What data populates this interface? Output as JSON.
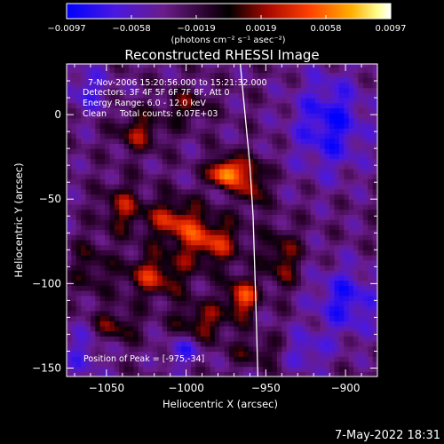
{
  "chart_data": {
    "type": "heatmap",
    "title": "Reconstructed RHESSI Image",
    "xlabel": "Heliocentric X (arcsec)",
    "ylabel": "Heliocentric Y (arcsec)",
    "xlim": [
      -1075,
      -880
    ],
    "ylim": [
      -155,
      30
    ],
    "x_ticks": [
      -1050,
      -1000,
      -950,
      -900
    ],
    "x_tick_labels": [
      "−1050",
      "−1000",
      "−950",
      "−900"
    ],
    "y_ticks": [
      0,
      -50,
      -100,
      -150
    ],
    "y_tick_labels": [
      "0",
      "−50",
      "−100",
      "−150"
    ],
    "colorbar": {
      "min": -0.0097,
      "max": 0.0097,
      "tick_labels": [
        "−0.0097",
        "−0.0058",
        "−0.0019",
        "0.0019",
        "0.0058",
        "0.0097"
      ],
      "unit_label": "(photons cm⁻² s⁻¹ asec⁻²)",
      "colors": [
        "#0000ff",
        "#5020d8",
        "#6a1c8a",
        "#000000",
        "#c01000",
        "#ff4000",
        "#ffa000",
        "#ffff80",
        "#ffffff"
      ]
    },
    "annotations": [
      "7-Nov-2006 15:20:56.000 to 15:21:32.000",
      "Detectors: 3F 4F 5F 6F 7F 8F, Att 0",
      "Energy Range: 6.0 - 12.0 keV",
      "Clean     Total counts: 6.07E+03"
    ],
    "peak_text": "Position of Peak = [-975,-34]",
    "peak_position": [
      -975,
      -34
    ],
    "sources": [
      {
        "x": -975,
        "y": -34,
        "amp": 1.0,
        "sx": 7,
        "sy": 6
      },
      {
        "x": -958,
        "y": -40,
        "amp": 0.55,
        "sx": 6,
        "sy": 10
      },
      {
        "x": -1008,
        "y": -62,
        "amp": 0.55,
        "sx": 12,
        "sy": 9
      },
      {
        "x": -1040,
        "y": -55,
        "amp": 0.45,
        "sx": 9,
        "sy": 10
      },
      {
        "x": -1030,
        "y": -10,
        "amp": 0.45,
        "sx": 10,
        "sy": 8
      },
      {
        "x": -985,
        "y": -75,
        "amp": 0.6,
        "sx": 14,
        "sy": 10
      },
      {
        "x": -965,
        "y": -108,
        "amp": 0.7,
        "sx": 7,
        "sy": 8
      },
      {
        "x": -1020,
        "y": -95,
        "amp": 0.55,
        "sx": 14,
        "sy": 9
      },
      {
        "x": -990,
        "y": -122,
        "amp": 0.45,
        "sx": 12,
        "sy": 8
      },
      {
        "x": -1045,
        "y": -125,
        "amp": 0.4,
        "sx": 10,
        "sy": 7
      },
      {
        "x": -940,
        "y": -85,
        "amp": 0.45,
        "sx": 8,
        "sy": 12
      },
      {
        "x": -955,
        "y": -140,
        "amp": 0.3,
        "sx": 12,
        "sy": 6
      },
      {
        "x": -1000,
        "y": 5,
        "amp": 0.35,
        "sx": 10,
        "sy": 7
      },
      {
        "x": -1060,
        "y": -90,
        "amp": 0.3,
        "sx": 8,
        "sy": 12
      }
    ],
    "negatives": [
      {
        "x": -910,
        "y": -5,
        "amp": -0.55,
        "sx": 16,
        "sy": 20
      },
      {
        "x": -900,
        "y": -110,
        "amp": -0.5,
        "sx": 14,
        "sy": 14
      },
      {
        "x": -925,
        "y": -140,
        "amp": -0.35,
        "sx": 10,
        "sy": 8
      },
      {
        "x": -1062,
        "y": 15,
        "amp": -0.35,
        "sx": 10,
        "sy": 10
      },
      {
        "x": -1065,
        "y": -140,
        "amp": -0.3,
        "sx": 10,
        "sy": 12
      },
      {
        "x": -1002,
        "y": -140,
        "amp": -0.4,
        "sx": 8,
        "sy": 6
      }
    ],
    "limb_curve": [
      [
        -966,
        30
      ],
      [
        -963,
        0
      ],
      [
        -960,
        -30
      ],
      [
        -958,
        -60
      ],
      [
        -957,
        -90
      ],
      [
        -956,
        -120
      ],
      [
        -955,
        -155
      ]
    ]
  },
  "footer": {
    "date": "7-May-2022 18:31"
  }
}
